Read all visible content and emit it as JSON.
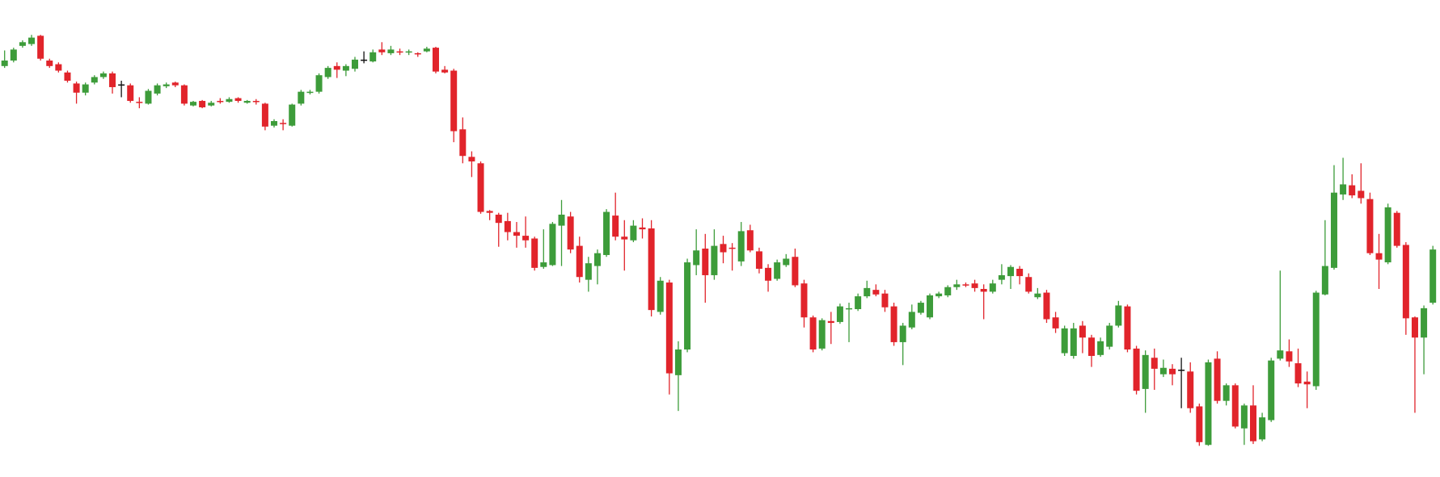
{
  "chart_data": {
    "type": "candlestick",
    "up_color": "#3d9c3a",
    "down_color": "#e1242b",
    "flat_color": "#111111",
    "ylim": [
      0,
      520
    ],
    "open": [
      448,
      454,
      470,
      472,
      481,
      454,
      450,
      441,
      429,
      419,
      430,
      436,
      440,
      428,
      427,
      409,
      407,
      418,
      426,
      430,
      427,
      405,
      410,
      405,
      410,
      409,
      413,
      408,
      410,
      407,
      383,
      386,
      383,
      407,
      419,
      420,
      436,
      448,
      443,
      445,
      455,
      453,
      466,
      462,
      464,
      463,
      462,
      464,
      468,
      444,
      443,
      379,
      349,
      342,
      290,
      286,
      279,
      267,
      263,
      260,
      229,
      231,
      274,
      284,
      252,
      215,
      230,
      242,
      285,
      262,
      258,
      272,
      271,
      180,
      212,
      111,
      139,
      231,
      249,
      220,
      254,
      250,
      235,
      269,
      246,
      228,
      216,
      231,
      240,
      211,
      174,
      140,
      170,
      169,
      183,
      183,
      197,
      204,
      200,
      186,
      147,
      163,
      179,
      174,
      197,
      198,
      207,
      210,
      211,
      205,
      202,
      215,
      219,
      227,
      218,
      196,
      201,
      174,
      135,
      132,
      165,
      152,
      133,
      142,
      165,
      186,
      140,
      96,
      130,
      112,
      118,
      117,
      115,
      77,
      35,
      129,
      83,
      100,
      53,
      78,
      41,
      62,
      129,
      137,
      124,
      104,
      99,
      199,
      228,
      308,
      318,
      312,
      303,
      244,
      234,
      288,
      253,
      174,
      152,
      190
    ],
    "high": [
      465,
      468,
      476,
      482,
      482,
      456,
      452,
      443,
      431,
      430,
      438,
      442,
      442,
      432,
      429,
      414,
      423,
      429,
      430,
      431,
      428,
      410,
      411,
      410,
      413,
      414,
      414,
      411,
      412,
      408,
      390,
      390,
      407,
      422,
      422,
      440,
      448,
      452,
      450,
      458,
      464,
      466,
      474,
      470,
      467,
      466,
      463,
      469,
      469,
      448,
      445,
      392,
      355,
      344,
      291,
      288,
      288,
      278,
      284,
      262,
      270,
      278,
      302,
      289,
      262,
      240,
      248,
      292,
      310,
      280,
      280,
      282,
      280,
      218,
      215,
      148,
      238,
      270,
      265,
      270,
      263,
      255,
      278,
      275,
      250,
      232,
      237,
      243,
      249,
      215,
      176,
      173,
      180,
      189,
      190,
      200,
      214,
      210,
      204,
      190,
      168,
      188,
      192,
      200,
      202,
      209,
      215,
      212,
      215,
      210,
      215,
      232,
      231,
      230,
      222,
      206,
      204,
      180,
      165,
      168,
      170,
      155,
      152,
      168,
      192,
      188,
      143,
      138,
      140,
      128,
      123,
      130,
      125,
      80,
      128,
      137,
      102,
      102,
      80,
      100,
      70,
      130,
      225,
      150,
      140,
      115,
      203,
      280,
      340,
      348,
      330,
      342,
      310,
      265,
      298,
      290,
      256,
      175,
      187,
      252
    ],
    "low": [
      446,
      452,
      468,
      470,
      454,
      446,
      441,
      430,
      407,
      416,
      428,
      434,
      418,
      414,
      408,
      402,
      406,
      416,
      424,
      425,
      405,
      404,
      402,
      404,
      407,
      408,
      408,
      407,
      406,
      378,
      381,
      378,
      382,
      405,
      417,
      418,
      434,
      435,
      437,
      442,
      451,
      452,
      460,
      460,
      460,
      460,
      458,
      463,
      440,
      440,
      365,
      342,
      327,
      287,
      280,
      251,
      258,
      250,
      250,
      225,
      227,
      230,
      230,
      244,
      212,
      202,
      210,
      240,
      258,
      225,
      256,
      260,
      175,
      177,
      90,
      72,
      136,
      220,
      190,
      215,
      233,
      225,
      230,
      245,
      222,
      202,
      214,
      229,
      207,
      163,
      136,
      138,
      145,
      167,
      147,
      181,
      195,
      197,
      180,
      143,
      122,
      161,
      177,
      172,
      195,
      196,
      204,
      207,
      202,
      172,
      200,
      210,
      205,
      210,
      200,
      194,
      168,
      157,
      132,
      129,
      135,
      120,
      131,
      139,
      163,
      136,
      90,
      70,
      95,
      109,
      100,
      75,
      70,
      34,
      34,
      80,
      78,
      53,
      35,
      36,
      39,
      60,
      127,
      120,
      98,
      75,
      95,
      198,
      226,
      302,
      304,
      298,
      242,
      205,
      232,
      250,
      155,
      70,
      112,
      188
    ],
    "close": [
      454,
      466,
      474,
      479,
      456,
      448,
      443,
      432,
      419,
      428,
      436,
      440,
      425,
      428,
      410,
      408,
      421,
      427,
      428,
      427,
      407,
      409,
      403,
      408,
      409,
      412,
      410,
      410,
      409,
      382,
      388,
      385,
      406,
      420,
      420,
      438,
      446,
      444,
      448,
      455,
      455,
      463,
      463,
      466,
      463,
      464,
      461,
      467,
      442,
      441,
      377,
      350,
      344,
      289,
      288,
      277,
      267,
      263,
      258,
      228,
      234,
      276,
      286,
      248,
      218,
      233,
      244,
      289,
      262,
      259,
      274,
      270,
      182,
      214,
      113,
      139,
      234,
      247,
      220,
      252,
      245,
      249,
      268,
      247,
      227,
      214,
      234,
      238,
      209,
      174,
      139,
      171,
      168,
      186,
      184,
      197,
      206,
      199,
      185,
      147,
      165,
      180,
      190,
      198,
      200,
      207,
      210,
      209,
      206,
      202,
      211,
      220,
      229,
      219,
      202,
      200,
      172,
      162,
      162,
      162,
      152,
      132,
      148,
      165,
      187,
      139,
      94,
      133,
      118,
      119,
      112,
      117,
      75,
      38,
      125,
      83,
      100,
      55,
      78,
      39,
      65,
      127,
      138,
      126,
      102,
      101,
      201,
      230,
      310,
      319,
      307,
      304,
      244,
      237,
      294,
      252,
      173,
      152,
      184,
      248
    ]
  }
}
